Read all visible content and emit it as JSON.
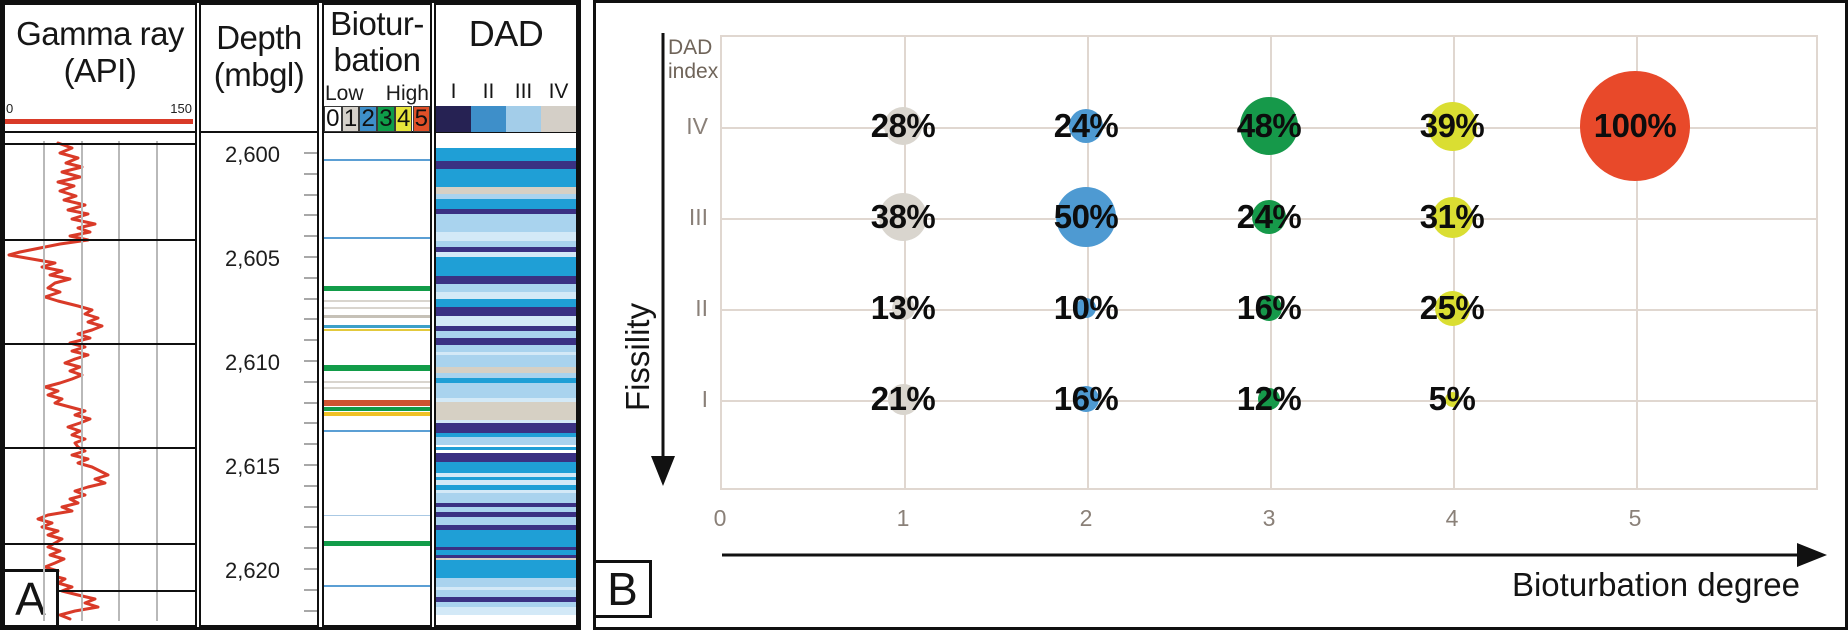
{
  "panel_a": {
    "label": "A",
    "gamma": {
      "title": "Gamma ray",
      "subtitle": "(API)",
      "scale_min": "0",
      "scale_max": "150",
      "curve_color": "#d93a28",
      "curve_points": [
        [
          58,
          143
        ],
        [
          72,
          148
        ],
        [
          60,
          153
        ],
        [
          78,
          158
        ],
        [
          66,
          163
        ],
        [
          82,
          167
        ],
        [
          62,
          172
        ],
        [
          80,
          177
        ],
        [
          58,
          182
        ],
        [
          74,
          186
        ],
        [
          60,
          191
        ],
        [
          76,
          196
        ],
        [
          64,
          200
        ],
        [
          85,
          205
        ],
        [
          68,
          210
        ],
        [
          88,
          214
        ],
        [
          72,
          219
        ],
        [
          95,
          224
        ],
        [
          78,
          228
        ],
        [
          90,
          232
        ],
        [
          70,
          236
        ],
        [
          88,
          240
        ],
        [
          60,
          244
        ],
        [
          40,
          248
        ],
        [
          20,
          252
        ],
        [
          9,
          255
        ],
        [
          32,
          259
        ],
        [
          55,
          263
        ],
        [
          42,
          267
        ],
        [
          62,
          271
        ],
        [
          50,
          275
        ],
        [
          70,
          279
        ],
        [
          55,
          283
        ],
        [
          48,
          288
        ],
        [
          60,
          292
        ],
        [
          45,
          297
        ],
        [
          58,
          301
        ],
        [
          78,
          306
        ],
        [
          92,
          310
        ],
        [
          85,
          314
        ],
        [
          98,
          318
        ],
        [
          88,
          322
        ],
        [
          102,
          326
        ],
        [
          92,
          330
        ],
        [
          78,
          334
        ],
        [
          90,
          338
        ],
        [
          70,
          343
        ],
        [
          85,
          347
        ],
        [
          72,
          351
        ],
        [
          88,
          355
        ],
        [
          75,
          359
        ],
        [
          65,
          363
        ],
        [
          80,
          367
        ],
        [
          70,
          371
        ],
        [
          82,
          375
        ],
        [
          72,
          379
        ],
        [
          60,
          383
        ],
        [
          45,
          387
        ],
        [
          58,
          391
        ],
        [
          48,
          395
        ],
        [
          62,
          399
        ],
        [
          55,
          403
        ],
        [
          70,
          407
        ],
        [
          85,
          411
        ],
        [
          75,
          415
        ],
        [
          90,
          419
        ],
        [
          80,
          423
        ],
        [
          68,
          427
        ],
        [
          80,
          431
        ],
        [
          72,
          435
        ],
        [
          85,
          439
        ],
        [
          75,
          443
        ],
        [
          78,
          447
        ],
        [
          85,
          451
        ],
        [
          72,
          455
        ],
        [
          88,
          459
        ],
        [
          78,
          463
        ],
        [
          92,
          467
        ],
        [
          100,
          471
        ],
        [
          108,
          475
        ],
        [
          95,
          479
        ],
        [
          105,
          483
        ],
        [
          88,
          487
        ],
        [
          75,
          491
        ],
        [
          85,
          495
        ],
        [
          70,
          499
        ],
        [
          78,
          503
        ],
        [
          62,
          507
        ],
        [
          72,
          511
        ],
        [
          48,
          515
        ],
        [
          38,
          519
        ],
        [
          52,
          523
        ],
        [
          42,
          527
        ],
        [
          58,
          531
        ],
        [
          48,
          535
        ],
        [
          62,
          539
        ],
        [
          55,
          543
        ],
        [
          48,
          547
        ],
        [
          60,
          551
        ],
        [
          50,
          555
        ],
        [
          64,
          559
        ],
        [
          55,
          563
        ],
        [
          45,
          567
        ],
        [
          58,
          571
        ],
        [
          50,
          575
        ],
        [
          65,
          579
        ],
        [
          58,
          583
        ],
        [
          72,
          587
        ],
        [
          62,
          591
        ],
        [
          78,
          595
        ],
        [
          95,
          599
        ],
        [
          85,
          603
        ],
        [
          98,
          607
        ],
        [
          75,
          611
        ],
        [
          60,
          615
        ],
        [
          70,
          619
        ]
      ]
    },
    "depth": {
      "title": "Depth",
      "subtitle": "(mbgl)",
      "labels": [
        "2,600",
        "2,605",
        "2,610",
        "2,615",
        "2,620"
      ]
    },
    "bioturbation": {
      "title_line1": "Biotur-",
      "title_line2": "bation",
      "low_label": "Low",
      "high_label": "High",
      "scale": [
        {
          "label": "0",
          "color": "#ffffff"
        },
        {
          "label": "1",
          "color": "#d5d1ca"
        },
        {
          "label": "2",
          "color": "#3e8fc9"
        },
        {
          "label": "3",
          "color": "#0f9d49"
        },
        {
          "label": "4",
          "color": "#e7e53b"
        },
        {
          "label": "5",
          "color": "#e05028"
        }
      ],
      "events": [
        [
          159,
          2,
          "#5b9fd4"
        ],
        [
          237,
          2,
          "#5b9fd4"
        ],
        [
          286,
          5,
          "#129c49"
        ],
        [
          300,
          2,
          "#d9d5ce"
        ],
        [
          307,
          2,
          "#d9d5ce"
        ],
        [
          315,
          3,
          "#c6c1b7"
        ],
        [
          325,
          3,
          "#3da0c8"
        ],
        [
          329,
          2,
          "#e3c93c"
        ],
        [
          365,
          6,
          "#129c49"
        ],
        [
          381,
          2,
          "#d9d5ce"
        ],
        [
          387,
          2,
          "#d9d5ce"
        ],
        [
          400,
          6,
          "#cf5430"
        ],
        [
          407,
          4,
          "#129c49"
        ],
        [
          412,
          4,
          "#f0c125"
        ],
        [
          430,
          2,
          "#5b9fd4"
        ],
        [
          515,
          1,
          "#aac9e4"
        ],
        [
          541,
          5,
          "#129c49"
        ],
        [
          585,
          2,
          "#5b9fd4"
        ]
      ]
    },
    "dad": {
      "title": "DAD",
      "classes": [
        {
          "label": "I",
          "color": "#262253"
        },
        {
          "label": "II",
          "color": "#3e8fc9"
        },
        {
          "label": "III",
          "color": "#a3cde9"
        },
        {
          "label": "IV",
          "color": "#d4cfc7"
        }
      ],
      "stripe_palette": {
        "W": "#ffffff",
        "C": "#1f9fd6",
        "N": "#3a3183",
        "L": "#a9d3ee",
        "E": "#d3e9f7",
        "G": "#d6d0c4"
      },
      "stripes": [
        [
          133,
          15,
          "W"
        ],
        [
          148,
          13,
          "C"
        ],
        [
          161,
          8,
          "N"
        ],
        [
          169,
          18,
          "C"
        ],
        [
          187,
          7,
          "G"
        ],
        [
          194,
          5,
          "L"
        ],
        [
          199,
          10,
          "C"
        ],
        [
          209,
          5,
          "N"
        ],
        [
          214,
          18,
          "L"
        ],
        [
          232,
          9,
          "E"
        ],
        [
          241,
          6,
          "L"
        ],
        [
          247,
          5,
          "N"
        ],
        [
          252,
          5,
          "E"
        ],
        [
          257,
          19,
          "C"
        ],
        [
          276,
          8,
          "N"
        ],
        [
          284,
          8,
          "L"
        ],
        [
          292,
          7,
          "E"
        ],
        [
          299,
          8,
          "C"
        ],
        [
          307,
          9,
          "N"
        ],
        [
          316,
          10,
          "E"
        ],
        [
          326,
          5,
          "N"
        ],
        [
          331,
          7,
          "L"
        ],
        [
          338,
          7,
          "N"
        ],
        [
          345,
          7,
          "L"
        ],
        [
          352,
          3,
          "E"
        ],
        [
          355,
          12,
          "L"
        ],
        [
          367,
          6,
          "G"
        ],
        [
          373,
          5,
          "L"
        ],
        [
          378,
          5,
          "C"
        ],
        [
          383,
          15,
          "L"
        ],
        [
          398,
          4,
          "E"
        ],
        [
          402,
          18,
          "G"
        ],
        [
          420,
          3,
          "E"
        ],
        [
          423,
          10,
          "N"
        ],
        [
          433,
          4,
          "C"
        ],
        [
          437,
          8,
          "L"
        ],
        [
          445,
          2,
          "W"
        ],
        [
          447,
          3,
          "C"
        ],
        [
          450,
          3,
          "W"
        ],
        [
          453,
          9,
          "N"
        ],
        [
          462,
          11,
          "C"
        ],
        [
          473,
          4,
          "E"
        ],
        [
          477,
          3,
          "C"
        ],
        [
          480,
          5,
          "E"
        ],
        [
          485,
          5,
          "C"
        ],
        [
          490,
          3,
          "E"
        ],
        [
          493,
          10,
          "L"
        ],
        [
          503,
          4,
          "N"
        ],
        [
          507,
          5,
          "L"
        ],
        [
          512,
          5,
          "N"
        ],
        [
          517,
          8,
          "L"
        ],
        [
          525,
          5,
          "N"
        ],
        [
          530,
          17,
          "C"
        ],
        [
          547,
          3,
          "N"
        ],
        [
          550,
          5,
          "C"
        ],
        [
          555,
          3,
          "N"
        ],
        [
          558,
          2,
          "G"
        ],
        [
          560,
          18,
          "C"
        ],
        [
          578,
          9,
          "L"
        ],
        [
          587,
          3,
          "E"
        ],
        [
          590,
          7,
          "L"
        ],
        [
          597,
          5,
          "N"
        ],
        [
          602,
          5,
          "L"
        ],
        [
          607,
          8,
          "E"
        ],
        [
          615,
          7,
          "W"
        ]
      ]
    }
  },
  "panel_b": {
    "label": "B",
    "y_axis_title_line1": "DAD",
    "y_axis_title_line2": "index",
    "y_axis_label": "Fissility",
    "x_axis_label": "Bioturbation degree",
    "x_ticks": [
      "0",
      "1",
      "2",
      "3",
      "4",
      "5"
    ],
    "row_labels": [
      "IV",
      "III",
      "II",
      "I"
    ]
  },
  "chart_data": {
    "type": "scatter",
    "subtype": "bubble",
    "title": "",
    "xlabel": "Bioturbation degree",
    "ylabel": "Fissility (DAD index)",
    "x_ticks": [
      0,
      1,
      2,
      3,
      4,
      5
    ],
    "xlim": [
      0,
      6
    ],
    "y_categories": [
      "IV",
      "III",
      "II",
      "I"
    ],
    "grid": true,
    "value_suffix": "%",
    "series": [
      {
        "name": "Bioturbation degree 1",
        "color": "#d9d5ce",
        "points": [
          {
            "x": 1,
            "dad": "IV",
            "value": 28
          },
          {
            "x": 1,
            "dad": "III",
            "value": 38
          },
          {
            "x": 1,
            "dad": "II",
            "value": 13
          },
          {
            "x": 1,
            "dad": "I",
            "value": 21
          }
        ]
      },
      {
        "name": "Bioturbation degree 2",
        "color": "#4e9ad2",
        "points": [
          {
            "x": 2,
            "dad": "IV",
            "value": 24
          },
          {
            "x": 2,
            "dad": "III",
            "value": 50
          },
          {
            "x": 2,
            "dad": "II",
            "value": 10
          },
          {
            "x": 2,
            "dad": "I",
            "value": 16
          }
        ]
      },
      {
        "name": "Bioturbation degree 3",
        "color": "#16994a",
        "points": [
          {
            "x": 3,
            "dad": "IV",
            "value": 48
          },
          {
            "x": 3,
            "dad": "III",
            "value": 24
          },
          {
            "x": 3,
            "dad": "II",
            "value": 16
          },
          {
            "x": 3,
            "dad": "I",
            "value": 12
          }
        ]
      },
      {
        "name": "Bioturbation degree 4",
        "color": "#dade32",
        "points": [
          {
            "x": 4,
            "dad": "IV",
            "value": 39
          },
          {
            "x": 4,
            "dad": "III",
            "value": 31
          },
          {
            "x": 4,
            "dad": "II",
            "value": 25
          },
          {
            "x": 4,
            "dad": "I",
            "value": 5
          }
        ]
      },
      {
        "name": "Bioturbation degree 5",
        "color": "#e8492a",
        "points": [
          {
            "x": 5,
            "dad": "IV",
            "value": 100
          }
        ]
      }
    ]
  }
}
